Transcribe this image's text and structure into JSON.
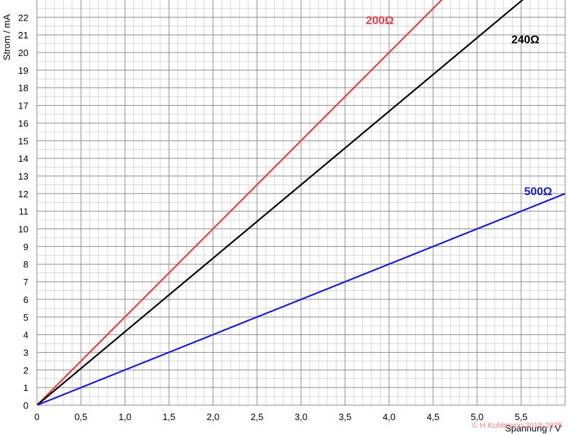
{
  "chart_data": {
    "type": "line",
    "title": "",
    "xlabel": "Spannung / V",
    "ylabel": "Strom / mA",
    "xlim": [
      0,
      6
    ],
    "ylim": [
      0,
      23
    ],
    "x_ticks": [
      "0",
      "0,5",
      "1,0",
      "1,5",
      "2,0",
      "2,5",
      "3,0",
      "3,5",
      "4,0",
      "4,5",
      "5,0",
      "5,5"
    ],
    "y_ticks": [
      "0",
      "1",
      "2",
      "3",
      "4",
      "5",
      "6",
      "7",
      "8",
      "9",
      "10",
      "11",
      "12",
      "13",
      "14",
      "15",
      "16",
      "17",
      "18",
      "19",
      "20",
      "21",
      "22"
    ],
    "grid": true,
    "series": [
      {
        "name": "200Ω",
        "color": "#f03c3c",
        "x": [
          0,
          4.6
        ],
        "y": [
          0,
          23
        ]
      },
      {
        "name": "240Ω",
        "color": "#000000",
        "x": [
          0,
          5.52
        ],
        "y": [
          0,
          23
        ]
      },
      {
        "name": "500Ω",
        "color": "#1a1adc",
        "x": [
          0,
          6
        ],
        "y": [
          0,
          12
        ]
      }
    ],
    "copyright": "© H.Kuhlmann 2018-2025"
  }
}
